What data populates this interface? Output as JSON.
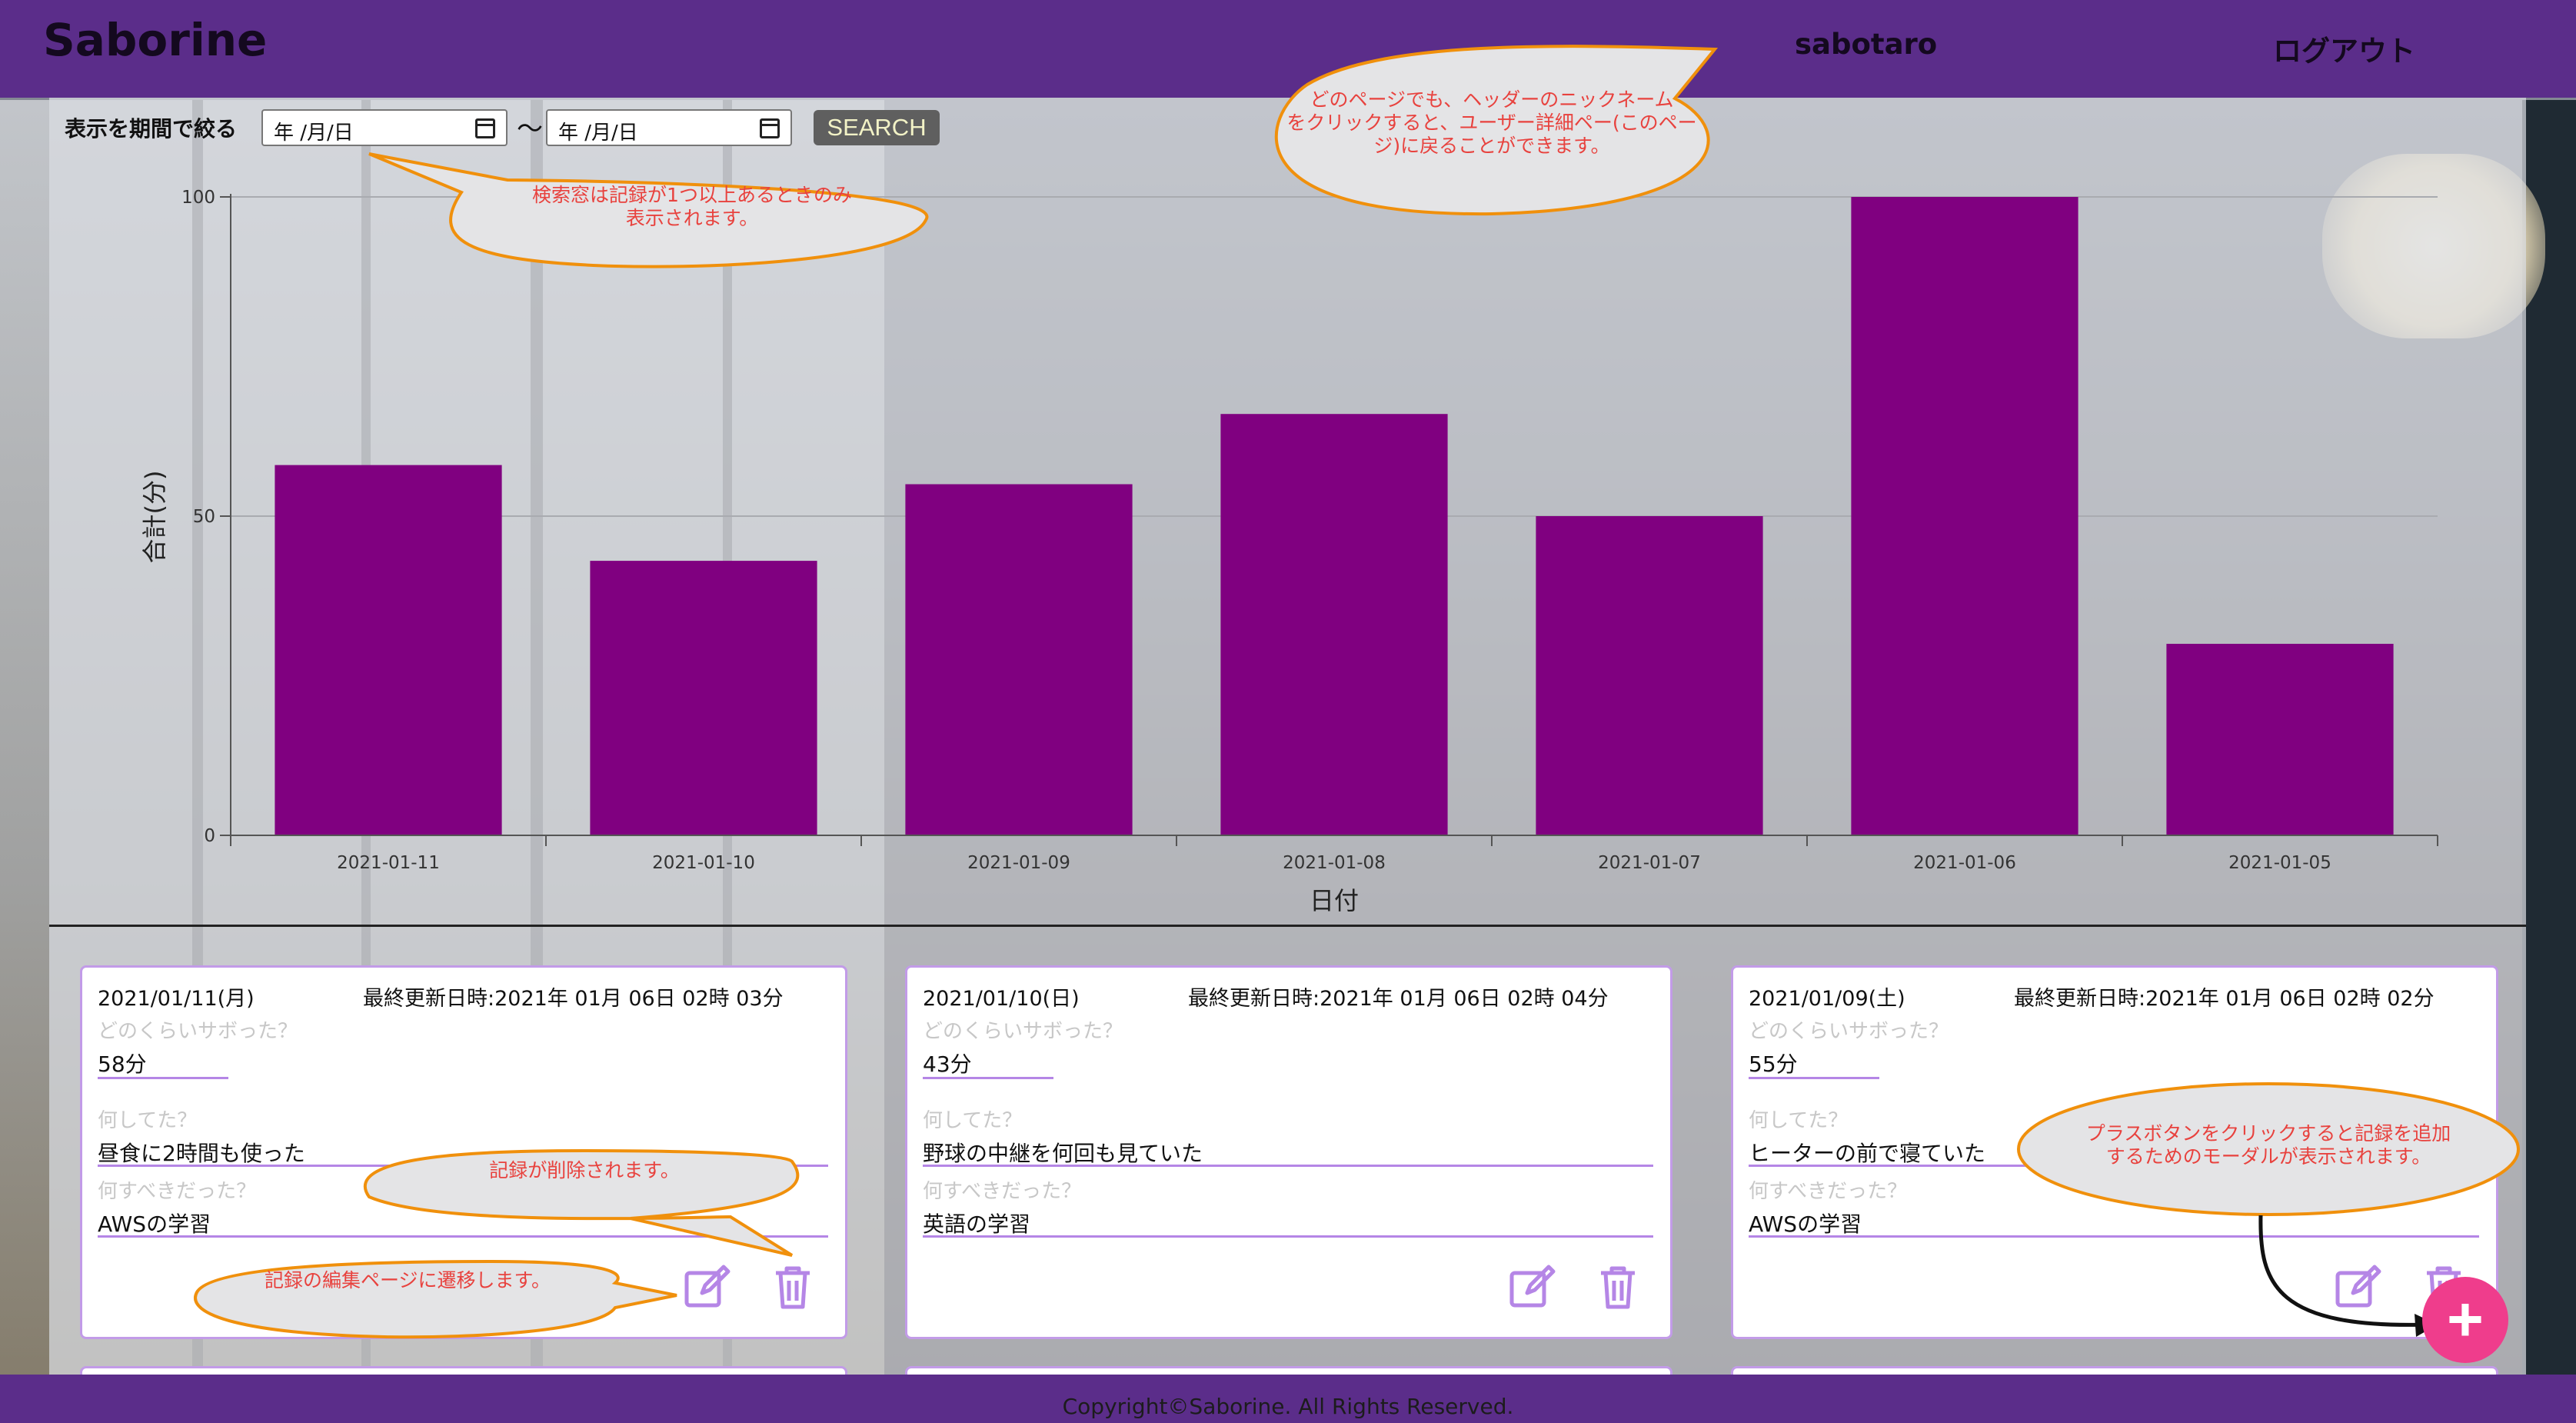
{
  "header": {
    "brand": "Saborine",
    "nickname": "sabotaro",
    "logout": "ログアウト"
  },
  "filter": {
    "label": "表示を期間で絞る",
    "start_placeholder": "年 /月/日",
    "end_placeholder": "年 /月/日",
    "separator": "〜",
    "search_label": "SEARCH"
  },
  "chart_data": {
    "type": "bar",
    "categories": [
      "2021-01-11",
      "2021-01-10",
      "2021-01-09",
      "2021-01-08",
      "2021-01-07",
      "2021-01-06",
      "2021-01-05"
    ],
    "values": [
      58,
      43,
      55,
      66,
      50,
      100,
      30
    ],
    "ylabel": "合計(分)",
    "xlabel": "日付",
    "ylim": [
      0,
      100
    ],
    "yticks": [
      0,
      50,
      100
    ],
    "grid": true,
    "bar_color": "#800080"
  },
  "cards": [
    {
      "date": "2021/01/11(月)",
      "updated": "最終更新日時:2021年 01月 06日 02時 03分",
      "q1": "どのくらいサボった？",
      "a1": "58分",
      "q2": "何してた？",
      "a2": "昼食に2時間も使った",
      "q3": "何すべきだった？",
      "a3": "AWSの学習"
    },
    {
      "date": "2021/01/10(日)",
      "updated": "最終更新日時:2021年 01月 06日 02時 04分",
      "q1": "どのくらいサボった？",
      "a1": "43分",
      "q2": "何してた？",
      "a2": "野球の中継を何回も見ていた",
      "q3": "何すべきだった？",
      "a3": "英語の学習"
    },
    {
      "date": "2021/01/09(土)",
      "updated": "最終更新日時:2021年 01月 06日 02時 02分",
      "q1": "どのくらいサボった？",
      "a1": "55分",
      "q2": "何してた？",
      "a2": "ヒーターの前で寝ていた",
      "q3": "何すべきだった？",
      "a3": "AWSの学習"
    }
  ],
  "callouts": {
    "header": [
      "どのページでも、ヘッダーのニックネーム",
      "をクリックすると、ユーザー詳細ペー(このペー",
      "ジ)に戻ることができます。"
    ],
    "search": [
      "検索窓は記録が1つ以上あるときのみ",
      "表示されます。"
    ],
    "delete": "記録が削除されます。",
    "edit": "記録の編集ページに遷移します。",
    "plus": [
      "プラスボタンをクリックすると記録を追加",
      "するためのモーダルが表示されます。"
    ]
  },
  "footer": {
    "copyright": "Copyright©Saborine. All Rights Reserved."
  },
  "colors": {
    "header": "#5b2d8a",
    "bar": "#800080",
    "accent": "#b586e6",
    "callout_stroke": "#f0900c",
    "callout_text": "#e8423e",
    "plus": "#ef3d8c"
  }
}
